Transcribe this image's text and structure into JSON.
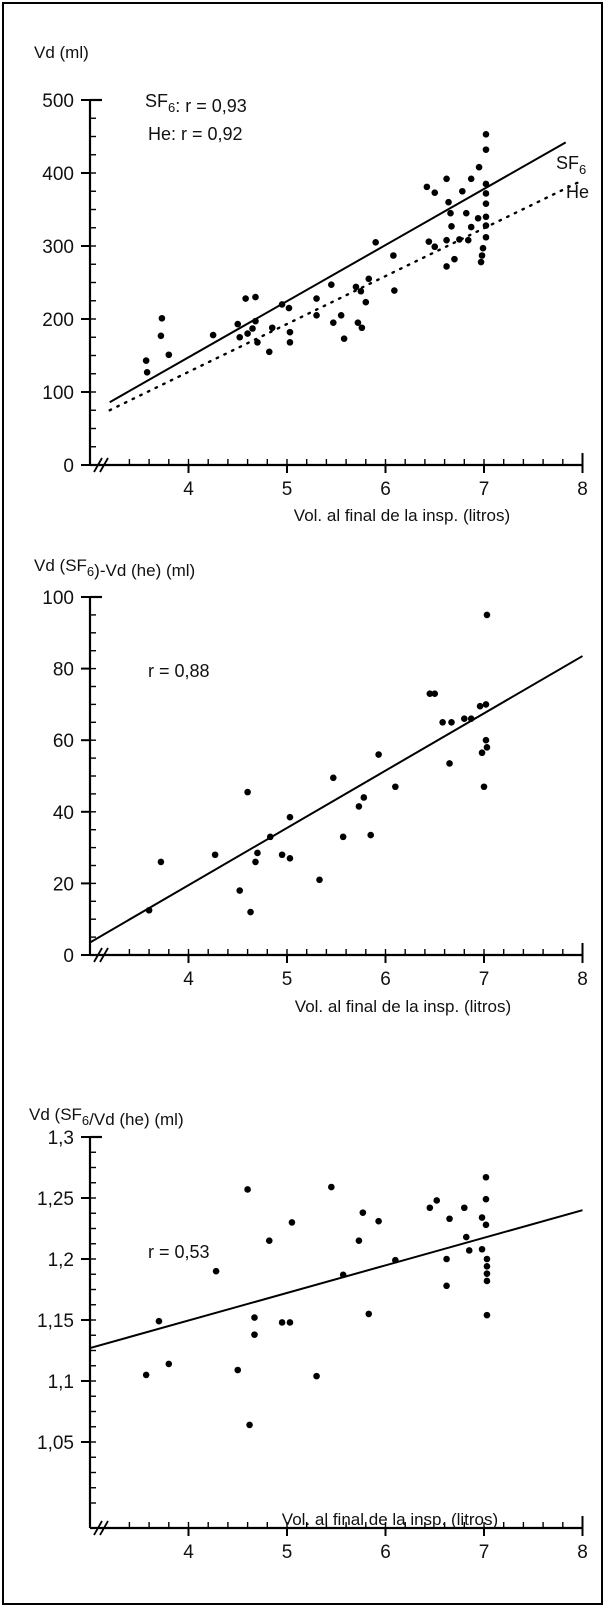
{
  "chart_data": [
    {
      "type": "scatter",
      "title": "Vd (ml)",
      "xlabel": "Vol. al final de la insp. (litros)",
      "xlim": [
        3,
        8
      ],
      "ylim": [
        0,
        500
      ],
      "x_ticks": [
        "4",
        "5",
        "6",
        "7",
        "8"
      ],
      "y_ticks": [
        "0",
        "100",
        "200",
        "300",
        "400",
        "500"
      ],
      "x_tick_values": [
        4,
        5,
        6,
        7,
        8
      ],
      "y_tick_values": [
        0,
        100,
        200,
        300,
        400,
        500
      ],
      "annotations": [
        "SF6: r = 0,93",
        "He: r = 0,92"
      ],
      "line_labels": [
        "SF6",
        "He"
      ],
      "series": [
        {
          "name": "SF6",
          "points": [
            [
              3.57,
              143
            ],
            [
              3.58,
              127
            ],
            [
              3.72,
              177
            ],
            [
              3.73,
              201
            ],
            [
              3.8,
              151
            ],
            [
              4.25,
              178
            ],
            [
              4.5,
              193
            ],
            [
              4.52,
              175
            ],
            [
              4.58,
              228
            ],
            [
              4.6,
              180
            ],
            [
              4.65,
              187
            ],
            [
              4.68,
              197
            ],
            [
              4.68,
              230
            ],
            [
              4.7,
              168
            ],
            [
              4.82,
              155
            ],
            [
              4.85,
              188
            ],
            [
              4.95,
              220
            ],
            [
              5.02,
              215
            ],
            [
              5.03,
              182
            ],
            [
              5.03,
              168
            ],
            [
              5.3,
              205
            ],
            [
              5.3,
              228
            ],
            [
              5.45,
              247
            ],
            [
              5.47,
              195
            ],
            [
              5.55,
              205
            ],
            [
              5.58,
              173
            ],
            [
              5.7,
              244
            ],
            [
              5.72,
              195
            ],
            [
              5.75,
              238
            ],
            [
              5.76,
              188
            ],
            [
              5.8,
              223
            ],
            [
              5.83,
              255
            ],
            [
              5.9,
              305
            ],
            [
              6.08,
              287
            ],
            [
              6.09,
              239
            ],
            [
              6.42,
              381
            ],
            [
              6.44,
              306
            ],
            [
              6.5,
              373
            ],
            [
              6.5,
              299
            ],
            [
              6.62,
              392
            ],
            [
              6.62,
              272
            ],
            [
              6.62,
              308
            ],
            [
              6.64,
              360
            ],
            [
              6.66,
              345
            ],
            [
              6.67,
              327
            ],
            [
              6.7,
              282
            ],
            [
              6.75,
              309
            ],
            [
              6.78,
              375
            ],
            [
              6.82,
              345
            ],
            [
              6.84,
              308
            ],
            [
              6.87,
              326
            ],
            [
              6.87,
              392
            ],
            [
              6.94,
              338
            ],
            [
              6.95,
              408
            ],
            [
              6.97,
              278
            ],
            [
              6.98,
              287
            ],
            [
              6.99,
              297
            ],
            [
              7.02,
              453
            ],
            [
              7.02,
              432
            ],
            [
              7.02,
              385
            ],
            [
              7.02,
              372
            ],
            [
              7.02,
              358
            ],
            [
              7.02,
              340
            ],
            [
              7.02,
              328
            ],
            [
              7.02,
              312
            ]
          ]
        }
      ],
      "fit_lines": [
        {
          "name": "SF6",
          "style": "solid",
          "from": [
            3.2,
            86
          ],
          "to": [
            7.83,
            442
          ]
        },
        {
          "name": "He",
          "style": "dotted",
          "from": [
            3.2,
            75
          ],
          "to": [
            8.0,
            390
          ]
        }
      ]
    },
    {
      "type": "scatter",
      "title": "Vd (SF6)-Vd (he) (ml)",
      "xlabel": "Vol. al final de la insp. (litros)",
      "xlim": [
        3,
        8
      ],
      "ylim": [
        0,
        100
      ],
      "x_ticks": [
        "4",
        "5",
        "6",
        "7",
        "8"
      ],
      "y_ticks": [
        "0",
        "20",
        "40",
        "60",
        "80",
        "100"
      ],
      "x_tick_values": [
        4,
        5,
        6,
        7,
        8
      ],
      "y_tick_values": [
        0,
        20,
        40,
        60,
        80,
        100
      ],
      "annotations": [
        "r = 0,88"
      ],
      "series": [
        {
          "name": "",
          "points": [
            [
              3.6,
              12.5
            ],
            [
              3.72,
              26
            ],
            [
              4.27,
              28
            ],
            [
              4.52,
              18
            ],
            [
              4.6,
              45.5
            ],
            [
              4.63,
              12
            ],
            [
              4.68,
              26
            ],
            [
              4.7,
              28.5
            ],
            [
              4.83,
              33
            ],
            [
              4.95,
              28
            ],
            [
              5.03,
              38.5
            ],
            [
              5.03,
              27
            ],
            [
              5.33,
              21
            ],
            [
              5.47,
              49.5
            ],
            [
              5.57,
              33
            ],
            [
              5.73,
              41.5
            ],
            [
              5.78,
              44
            ],
            [
              5.85,
              33.5
            ],
            [
              5.93,
              56
            ],
            [
              6.1,
              47
            ],
            [
              6.45,
              73
            ],
            [
              6.5,
              73
            ],
            [
              6.58,
              65
            ],
            [
              6.65,
              53.5
            ],
            [
              6.67,
              65
            ],
            [
              6.8,
              66
            ],
            [
              6.87,
              66
            ],
            [
              6.96,
              69.5
            ],
            [
              6.98,
              56.5
            ],
            [
              7.0,
              47
            ],
            [
              7.02,
              70
            ],
            [
              7.02,
              60
            ],
            [
              7.03,
              58
            ],
            [
              7.03,
              95
            ]
          ]
        }
      ],
      "fit_lines": [
        {
          "name": "",
          "style": "solid",
          "from": [
            3.0,
            3.5
          ],
          "to": [
            8.0,
            83.5
          ]
        }
      ]
    },
    {
      "type": "scatter",
      "title": "Vd (SF6/Vd (he) (ml)",
      "xlabel": "Vol. al final de la insp. (litros)",
      "xlim": [
        3,
        8
      ],
      "ylim": [
        1.0,
        1.3
      ],
      "x_ticks": [
        "4",
        "5",
        "6",
        "7",
        "8"
      ],
      "y_ticks": [
        "1,05",
        "1,1",
        "1,15",
        "1,2",
        "1,25",
        "1,3"
      ],
      "x_tick_values": [
        4,
        5,
        6,
        7,
        8
      ],
      "y_tick_values": [
        1.05,
        1.1,
        1.15,
        1.2,
        1.25,
        1.3
      ],
      "annotations": [
        "r = 0,53"
      ],
      "series": [
        {
          "name": "",
          "points": [
            [
              3.57,
              1.105
            ],
            [
              3.7,
              1.149
            ],
            [
              3.8,
              1.114
            ],
            [
              4.28,
              1.19
            ],
            [
              4.5,
              1.109
            ],
            [
              4.6,
              1.257
            ],
            [
              4.62,
              1.064
            ],
            [
              4.67,
              1.152
            ],
            [
              4.67,
              1.138
            ],
            [
              4.82,
              1.215
            ],
            [
              4.95,
              1.148
            ],
            [
              5.03,
              1.148
            ],
            [
              5.05,
              1.23
            ],
            [
              5.3,
              1.104
            ],
            [
              5.45,
              1.259
            ],
            [
              5.57,
              1.187
            ],
            [
              5.73,
              1.215
            ],
            [
              5.77,
              1.238
            ],
            [
              5.83,
              1.155
            ],
            [
              5.93,
              1.231
            ],
            [
              6.1,
              1.199
            ],
            [
              6.45,
              1.242
            ],
            [
              6.52,
              1.248
            ],
            [
              6.62,
              1.178
            ],
            [
              6.62,
              1.2
            ],
            [
              6.65,
              1.233
            ],
            [
              6.8,
              1.242
            ],
            [
              6.82,
              1.218
            ],
            [
              6.85,
              1.207
            ],
            [
              6.98,
              1.234
            ],
            [
              6.98,
              1.208
            ],
            [
              7.02,
              1.267
            ],
            [
              7.02,
              1.249
            ],
            [
              7.02,
              1.228
            ],
            [
              7.03,
              1.2
            ],
            [
              7.03,
              1.194
            ],
            [
              7.03,
              1.188
            ],
            [
              7.03,
              1.182
            ],
            [
              7.03,
              1.154
            ]
          ]
        }
      ],
      "fit_lines": [
        {
          "name": "",
          "style": "solid",
          "from": [
            3.0,
            1.127
          ],
          "to": [
            8.0,
            1.24
          ]
        }
      ]
    }
  ]
}
